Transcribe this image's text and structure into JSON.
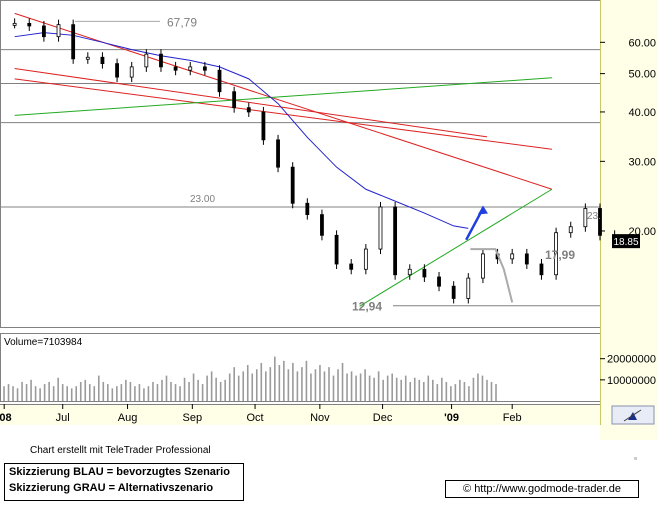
{
  "chart_data": {
    "type": "candlestick",
    "price_axis": {
      "scale": "log",
      "ylim": [
        11.5,
        75
      ],
      "tick_labels": [
        "60.00",
        "50.00",
        "40.00",
        "30.00",
        "20.00"
      ],
      "tick_values": [
        60,
        50,
        40,
        30,
        20
      ],
      "last_price_label": "18.85",
      "last_price_value": 18.85,
      "last_price_color": "#000000"
    },
    "x_axis": {
      "labels": [
        "'08",
        "Jul",
        "Aug",
        "Sep",
        "Oct",
        "Nov",
        "Dec",
        "'09",
        "Feb"
      ]
    },
    "horizontal_levels": [
      {
        "label": "67,79",
        "value": 67.79,
        "line": false
      },
      {
        "value": 57.5,
        "line": true
      },
      {
        "value": 47.2,
        "line": true
      },
      {
        "value": 37.6,
        "line": true
      },
      {
        "label": "23.00",
        "value": 23.0,
        "line": true,
        "right_label": "23."
      },
      {
        "label": "17,99",
        "value": 17.99,
        "line": false
      },
      {
        "label": "12,94",
        "value": 12.94,
        "line": true
      }
    ],
    "trendlines": [
      {
        "color": "#dd2222",
        "from": {
          "x": "2008-06-08",
          "y": 71.0
        },
        "to": {
          "x": "2009-02-20",
          "y": 25.5
        }
      },
      {
        "color": "#dd2222",
        "from": {
          "x": "2008-06-08",
          "y": 48.5
        },
        "to": {
          "x": "2009-02-20",
          "y": 32.2
        }
      },
      {
        "color": "#dd2222",
        "from": {
          "x": "2008-06-08",
          "y": 51.5
        },
        "to": {
          "x": "2009-01-20",
          "y": 34.6
        }
      },
      {
        "color": "#22aa22",
        "from": {
          "x": "2008-06-08",
          "y": 39.2
        },
        "to": {
          "x": "2009-02-20",
          "y": 48.8
        }
      },
      {
        "color": "#22aa22",
        "from": {
          "x": "2008-11-20",
          "y": 12.9
        },
        "to": {
          "x": "2009-02-20",
          "y": 25.5
        }
      }
    ],
    "series": [
      {
        "name": "",
        "kind": "moving_average",
        "color": "#2222cc",
        "points": [
          [
            "2008-06-08",
            62.0
          ],
          [
            "2008-06-22",
            63.5
          ],
          [
            "2008-07-06",
            62.5
          ],
          [
            "2008-07-20",
            60.0
          ],
          [
            "2008-08-03",
            57.5
          ],
          [
            "2008-08-17",
            55.5
          ],
          [
            "2008-08-31",
            54.0
          ],
          [
            "2008-09-14",
            52.0
          ],
          [
            "2008-09-28",
            48.5
          ],
          [
            "2008-10-12",
            42.0
          ],
          [
            "2008-10-26",
            34.5
          ],
          [
            "2008-11-09",
            29.0
          ],
          [
            "2008-11-23",
            25.5
          ],
          [
            "2008-12-07",
            23.8
          ],
          [
            "2008-12-21",
            22.2
          ],
          [
            "2009-01-04",
            20.6
          ],
          [
            "2009-01-11",
            20.3
          ]
        ]
      },
      {
        "name": "",
        "kind": "price",
        "color": "#000000",
        "points": [
          [
            "2008-06-08",
            67.0
          ],
          [
            "2008-06-15",
            66.0
          ],
          [
            "2008-06-22",
            62.0
          ],
          [
            "2008-06-29",
            66.5
          ],
          [
            "2008-07-06",
            54.5
          ],
          [
            "2008-07-13",
            55.0
          ],
          [
            "2008-07-20",
            53.0
          ],
          [
            "2008-07-27",
            49.0
          ],
          [
            "2008-08-03",
            52.0
          ],
          [
            "2008-08-10",
            56.0
          ],
          [
            "2008-08-17",
            52.0
          ],
          [
            "2008-08-24",
            51.0
          ],
          [
            "2008-08-31",
            52.0
          ],
          [
            "2008-09-07",
            51.0
          ],
          [
            "2008-09-14",
            45.0
          ],
          [
            "2008-09-21",
            41.0
          ],
          [
            "2008-09-28",
            40.0
          ],
          [
            "2008-10-05",
            34.0
          ],
          [
            "2008-10-12",
            29.0
          ],
          [
            "2008-10-19",
            23.5
          ],
          [
            "2008-10-26",
            22.0
          ],
          [
            "2008-11-02",
            19.5
          ],
          [
            "2008-11-09",
            16.5
          ],
          [
            "2008-11-16",
            16.0
          ],
          [
            "2008-11-23",
            18.0
          ],
          [
            "2008-11-30",
            23.0
          ],
          [
            "2008-12-07",
            15.5
          ],
          [
            "2008-12-14",
            16.0
          ],
          [
            "2008-12-21",
            15.3
          ],
          [
            "2008-12-28",
            14.5
          ],
          [
            "2009-01-04",
            13.5
          ],
          [
            "2009-01-11",
            15.2
          ],
          [
            "2009-01-18",
            17.5
          ],
          [
            "2009-01-25",
            17.0
          ],
          [
            "2009-02-01",
            17.5
          ],
          [
            "2009-02-08",
            16.5
          ],
          [
            "2009-02-15",
            15.5
          ],
          [
            "2009-02-22",
            19.8
          ],
          [
            "2009-03-01",
            20.5
          ],
          [
            "2009-03-08",
            22.8
          ],
          [
            "2009-03-15",
            19.5
          ],
          [
            "2009-03-22",
            18.85
          ]
        ]
      },
      {
        "name": "",
        "kind": "scenario",
        "color": "#1f3fe0",
        "points": [
          [
            "2009-01-10",
            19.0
          ],
          [
            "2009-01-18",
            22.8
          ]
        ]
      },
      {
        "name": "",
        "kind": "scenario",
        "color": "#aaaaaa",
        "points": [
          [
            "2009-01-12",
            18.0
          ],
          [
            "2009-01-24",
            18.0
          ],
          [
            "2009-01-28",
            16.0
          ],
          [
            "2009-02-01",
            13.2
          ]
        ]
      }
    ],
    "volume": {
      "label": "Volume=7103984",
      "tick_labels": [
        "20000000",
        "10000000"
      ],
      "tick_values": [
        20000000,
        10000000
      ],
      "ylim": [
        0,
        26000000
      ],
      "values": [
        7,
        8,
        7,
        6,
        9,
        8,
        10,
        7,
        6,
        8,
        9,
        7,
        11,
        8,
        7,
        6,
        7,
        9,
        10,
        8,
        7,
        12,
        9,
        8,
        6,
        7,
        8,
        10,
        9,
        7,
        8,
        6,
        7,
        9,
        8,
        10,
        12,
        9,
        8,
        7,
        11,
        9,
        13,
        10,
        8,
        12,
        14,
        11,
        9,
        10,
        13,
        16,
        12,
        14,
        17,
        13,
        15,
        18,
        14,
        16,
        21,
        17,
        19,
        15,
        18,
        14,
        16,
        19,
        13,
        15,
        17,
        14,
        16,
        12,
        15,
        18,
        13,
        14,
        12,
        13,
        15,
        12,
        11,
        14,
        10,
        12,
        13,
        11,
        10,
        12,
        9,
        11,
        10,
        9,
        12,
        10,
        8,
        11,
        9,
        7,
        8,
        10,
        9,
        7,
        11,
        13,
        12,
        10,
        9,
        8
      ],
      "value_unit": "million"
    }
  },
  "footer": {
    "credit": "Chart erstellt mit TeleTrader Professional",
    "legend_blue": "Skizzierung BLAU = bevorzugtes Szenario",
    "legend_gray": "Skizzierung GRAU = Alternativszenario",
    "url": "© http://www.godmode-trader.de"
  }
}
